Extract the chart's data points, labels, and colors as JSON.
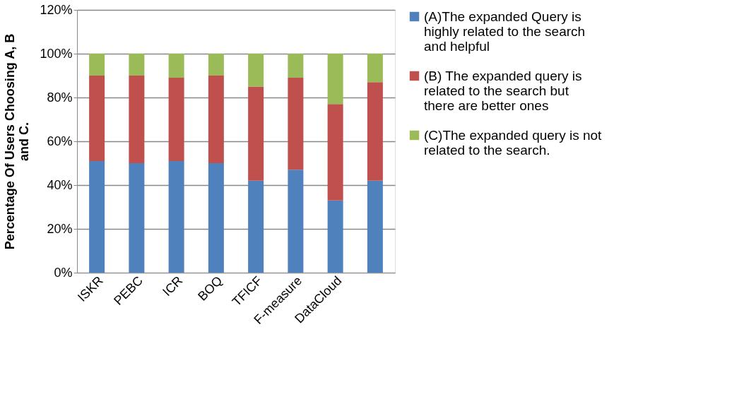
{
  "chart_data": {
    "type": "bar",
    "stacked": true,
    "ylabel": "Percentage Of Users Choosing A, B and C.",
    "categories": [
      "ISKR",
      "PEBC",
      "ICR",
      "BOQ",
      "TFICF",
      "F-measure",
      "DataCloud",
      null
    ],
    "series": [
      {
        "name": "(A)The expanded Query is highly related to the search and helpful",
        "color": "#4f81bd",
        "values": [
          51,
          50,
          51,
          50,
          42,
          47,
          33,
          42
        ]
      },
      {
        "name": "(B) The expanded query is related to the search but there are better ones",
        "color": "#c0504d",
        "values": [
          39,
          40,
          38,
          40,
          43,
          42,
          44,
          45
        ]
      },
      {
        "name": "(C)The expanded query is not related to the search.",
        "color": "#9bbb59",
        "values": [
          10,
          10,
          11,
          10,
          15,
          11,
          23,
          13
        ]
      }
    ],
    "ylim": [
      0,
      120
    ],
    "yticks": [
      {
        "value": 0,
        "label": "0%"
      },
      {
        "value": 20,
        "label": "20%"
      },
      {
        "value": 40,
        "label": "40%"
      },
      {
        "value": 60,
        "label": "60%"
      },
      {
        "value": 80,
        "label": "80%"
      },
      {
        "value": 100,
        "label": "100%"
      },
      {
        "value": 120,
        "label": "120%"
      }
    ],
    "grid": "y",
    "legend": "right"
  }
}
